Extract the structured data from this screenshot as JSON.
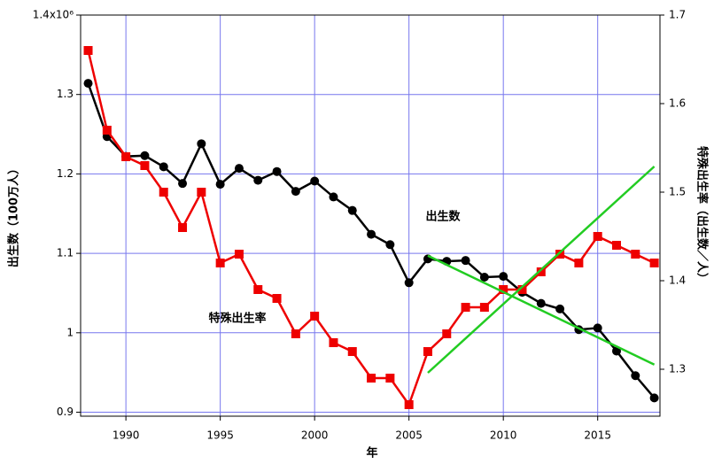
{
  "chart_data": {
    "type": "line",
    "xlabel": "年",
    "ylabel": "出生数（100万人）",
    "y2label": "特殊出生率（出生数／人）",
    "annotations": [
      "出生数",
      "特殊出生率"
    ],
    "xlim": [
      1987.6,
      2018.3
    ],
    "xticks": [
      1990,
      1995,
      2000,
      2005,
      2010,
      2015
    ],
    "ylim": [
      0.895,
      1.4
    ],
    "yticks": [
      0.9,
      1.0,
      1.1,
      1.2,
      1.3,
      {
        "value": 1.4,
        "label": "1.4x10⁶"
      }
    ],
    "y2lim": [
      1.247,
      1.7
    ],
    "y2ticks": [
      1.3,
      1.4,
      1.5,
      1.6,
      1.7
    ],
    "grid": true,
    "series": [
      {
        "name": "出生数",
        "color": "#000000",
        "marker": "circle",
        "x": [
          1988,
          1989,
          1990,
          1991,
          1992,
          1993,
          1994,
          1995,
          1996,
          1997,
          1998,
          1999,
          2000,
          2001,
          2002,
          2003,
          2004,
          2005,
          2006,
          2007,
          2008,
          2009,
          2010,
          2011,
          2012,
          2013,
          2014,
          2015,
          2016,
          2017,
          2018
        ],
        "values": [
          1.314,
          1.247,
          1.222,
          1.223,
          1.209,
          1.188,
          1.238,
          1.187,
          1.207,
          1.192,
          1.203,
          1.178,
          1.191,
          1.171,
          1.154,
          1.124,
          1.111,
          1.063,
          1.093,
          1.09,
          1.091,
          1.07,
          1.071,
          1.051,
          1.037,
          1.03,
          1.004,
          1.006,
          0.977,
          0.946,
          0.918
        ]
      },
      {
        "name": "特殊出生率",
        "color": "#ee0000",
        "marker": "square",
        "axis": "y2",
        "x": [
          1988,
          1989,
          1990,
          1991,
          1992,
          1993,
          1994,
          1995,
          1996,
          1997,
          1998,
          1999,
          2000,
          2001,
          2002,
          2003,
          2004,
          2005,
          2006,
          2007,
          2008,
          2009,
          2010,
          2011,
          2012,
          2013,
          2014,
          2015,
          2016,
          2017,
          2018
        ],
        "values": [
          1.66,
          1.57,
          1.54,
          1.53,
          1.5,
          1.46,
          1.5,
          1.42,
          1.43,
          1.39,
          1.38,
          1.34,
          1.36,
          1.33,
          1.32,
          1.29,
          1.29,
          1.26,
          1.32,
          1.34,
          1.37,
          1.37,
          1.39,
          1.39,
          1.41,
          1.43,
          1.42,
          1.45,
          1.44,
          1.43,
          1.42
        ]
      },
      {
        "color": "#22cc22",
        "x": [
          2006,
          2018
        ],
        "values": [
          1.097,
          0.96
        ]
      },
      {
        "color": "#22cc22",
        "axis": "y2",
        "x": [
          2006,
          2018
        ],
        "values": [
          1.296,
          1.529
        ]
      }
    ]
  }
}
